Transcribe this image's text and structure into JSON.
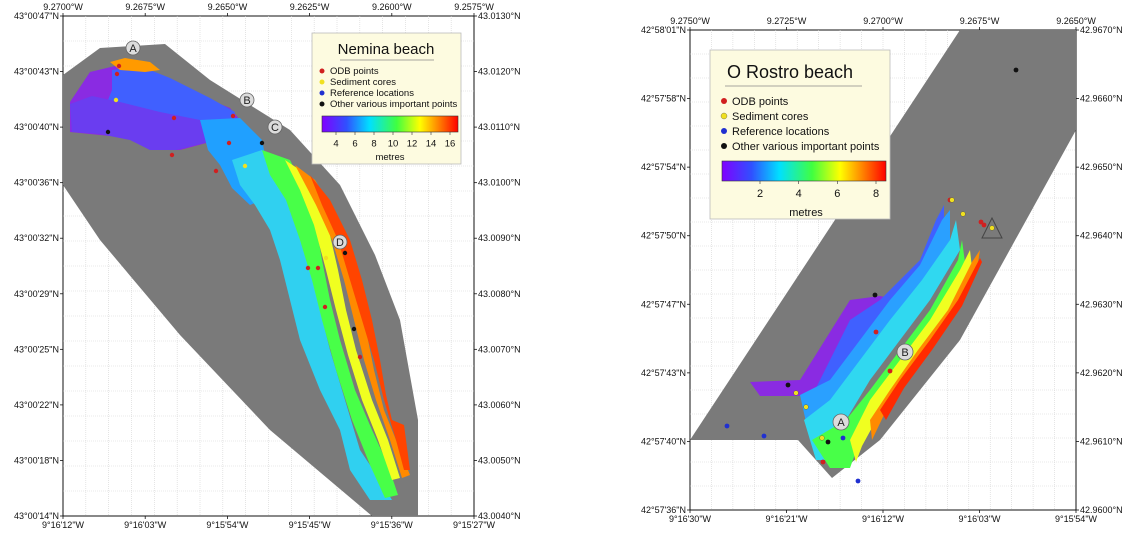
{
  "maps": [
    {
      "title": "Nemina beach",
      "top_ticks": [
        "9.2700°W",
        "9.2675°W",
        "9.2650°W",
        "9.2625°W",
        "9.2600°W",
        "9.2575°W"
      ],
      "bottom_ticks": [
        "9°16'12\"W",
        "9°16'03\"W",
        "9°15'54\"W",
        "9°15'45\"W",
        "9°15'36\"W",
        "9°15'27\"W"
      ],
      "left_ticks": [
        "43°00'47\"N",
        "43°00'43\"N",
        "43°00'40\"N",
        "43°00'36\"N",
        "43°00'32\"N",
        "43°00'29\"N",
        "43°00'25\"N",
        "43°00'22\"N",
        "43°00'18\"N",
        "43°00'14\"N"
      ],
      "right_ticks": [
        "43.0130°N",
        "43.0120°N",
        "43.0110°N",
        "43.0100°N",
        "43.0090°N",
        "43.0080°N",
        "43.0070°N",
        "43.0060°N",
        "43.0050°N",
        "43.0040°N"
      ],
      "legend": {
        "items": [
          {
            "label": "ODB points",
            "color": "#d02020"
          },
          {
            "label": "Sediment cores",
            "color": "#f0e020"
          },
          {
            "label": "Reference locations",
            "color": "#2030d0"
          },
          {
            "label": "Other various important points",
            "color": "#111111"
          }
        ],
        "colorbar_ticks": [
          "4",
          "6",
          "8",
          "10",
          "12",
          "14",
          "16"
        ],
        "colorbar_unit": "metres"
      },
      "markers": [
        "A",
        "B",
        "C",
        "D"
      ]
    },
    {
      "title": "O Rostro beach",
      "top_ticks": [
        "9.2750°W",
        "9.2725°W",
        "9.2700°W",
        "9.2675°W",
        "9.2650°W"
      ],
      "bottom_ticks": [
        "9°16'30\"W",
        "9°16'21\"W",
        "9°16'12\"W",
        "9°16'03\"W",
        "9°15'54\"W"
      ],
      "left_ticks": [
        "42°58'01\"N",
        "42°57'58\"N",
        "42°57'54\"N",
        "42°57'50\"N",
        "42°57'47\"N",
        "42°57'43\"N",
        "42°57'40\"N",
        "42°57'36\"N"
      ],
      "right_ticks": [
        "42.9670°N",
        "42.9660°N",
        "42.9650°N",
        "42.9640°N",
        "42.9630°N",
        "42.9620°N",
        "42.9610°N",
        "42.9600°N"
      ],
      "legend": {
        "items": [
          {
            "label": "ODB points",
            "color": "#d02020"
          },
          {
            "label": "Sediment cores",
            "color": "#f0e020"
          },
          {
            "label": "Reference locations",
            "color": "#2030d0"
          },
          {
            "label": "Other various important points",
            "color": "#111111"
          }
        ],
        "colorbar_ticks": [
          "2",
          "4",
          "6",
          "8"
        ],
        "colorbar_unit": "metres"
      },
      "markers": [
        "A",
        "B"
      ]
    }
  ],
  "colors": {
    "land_mask": "#7a7a7a",
    "grid": "#c8c8c8",
    "legend_bg": "#fdfbe0"
  }
}
